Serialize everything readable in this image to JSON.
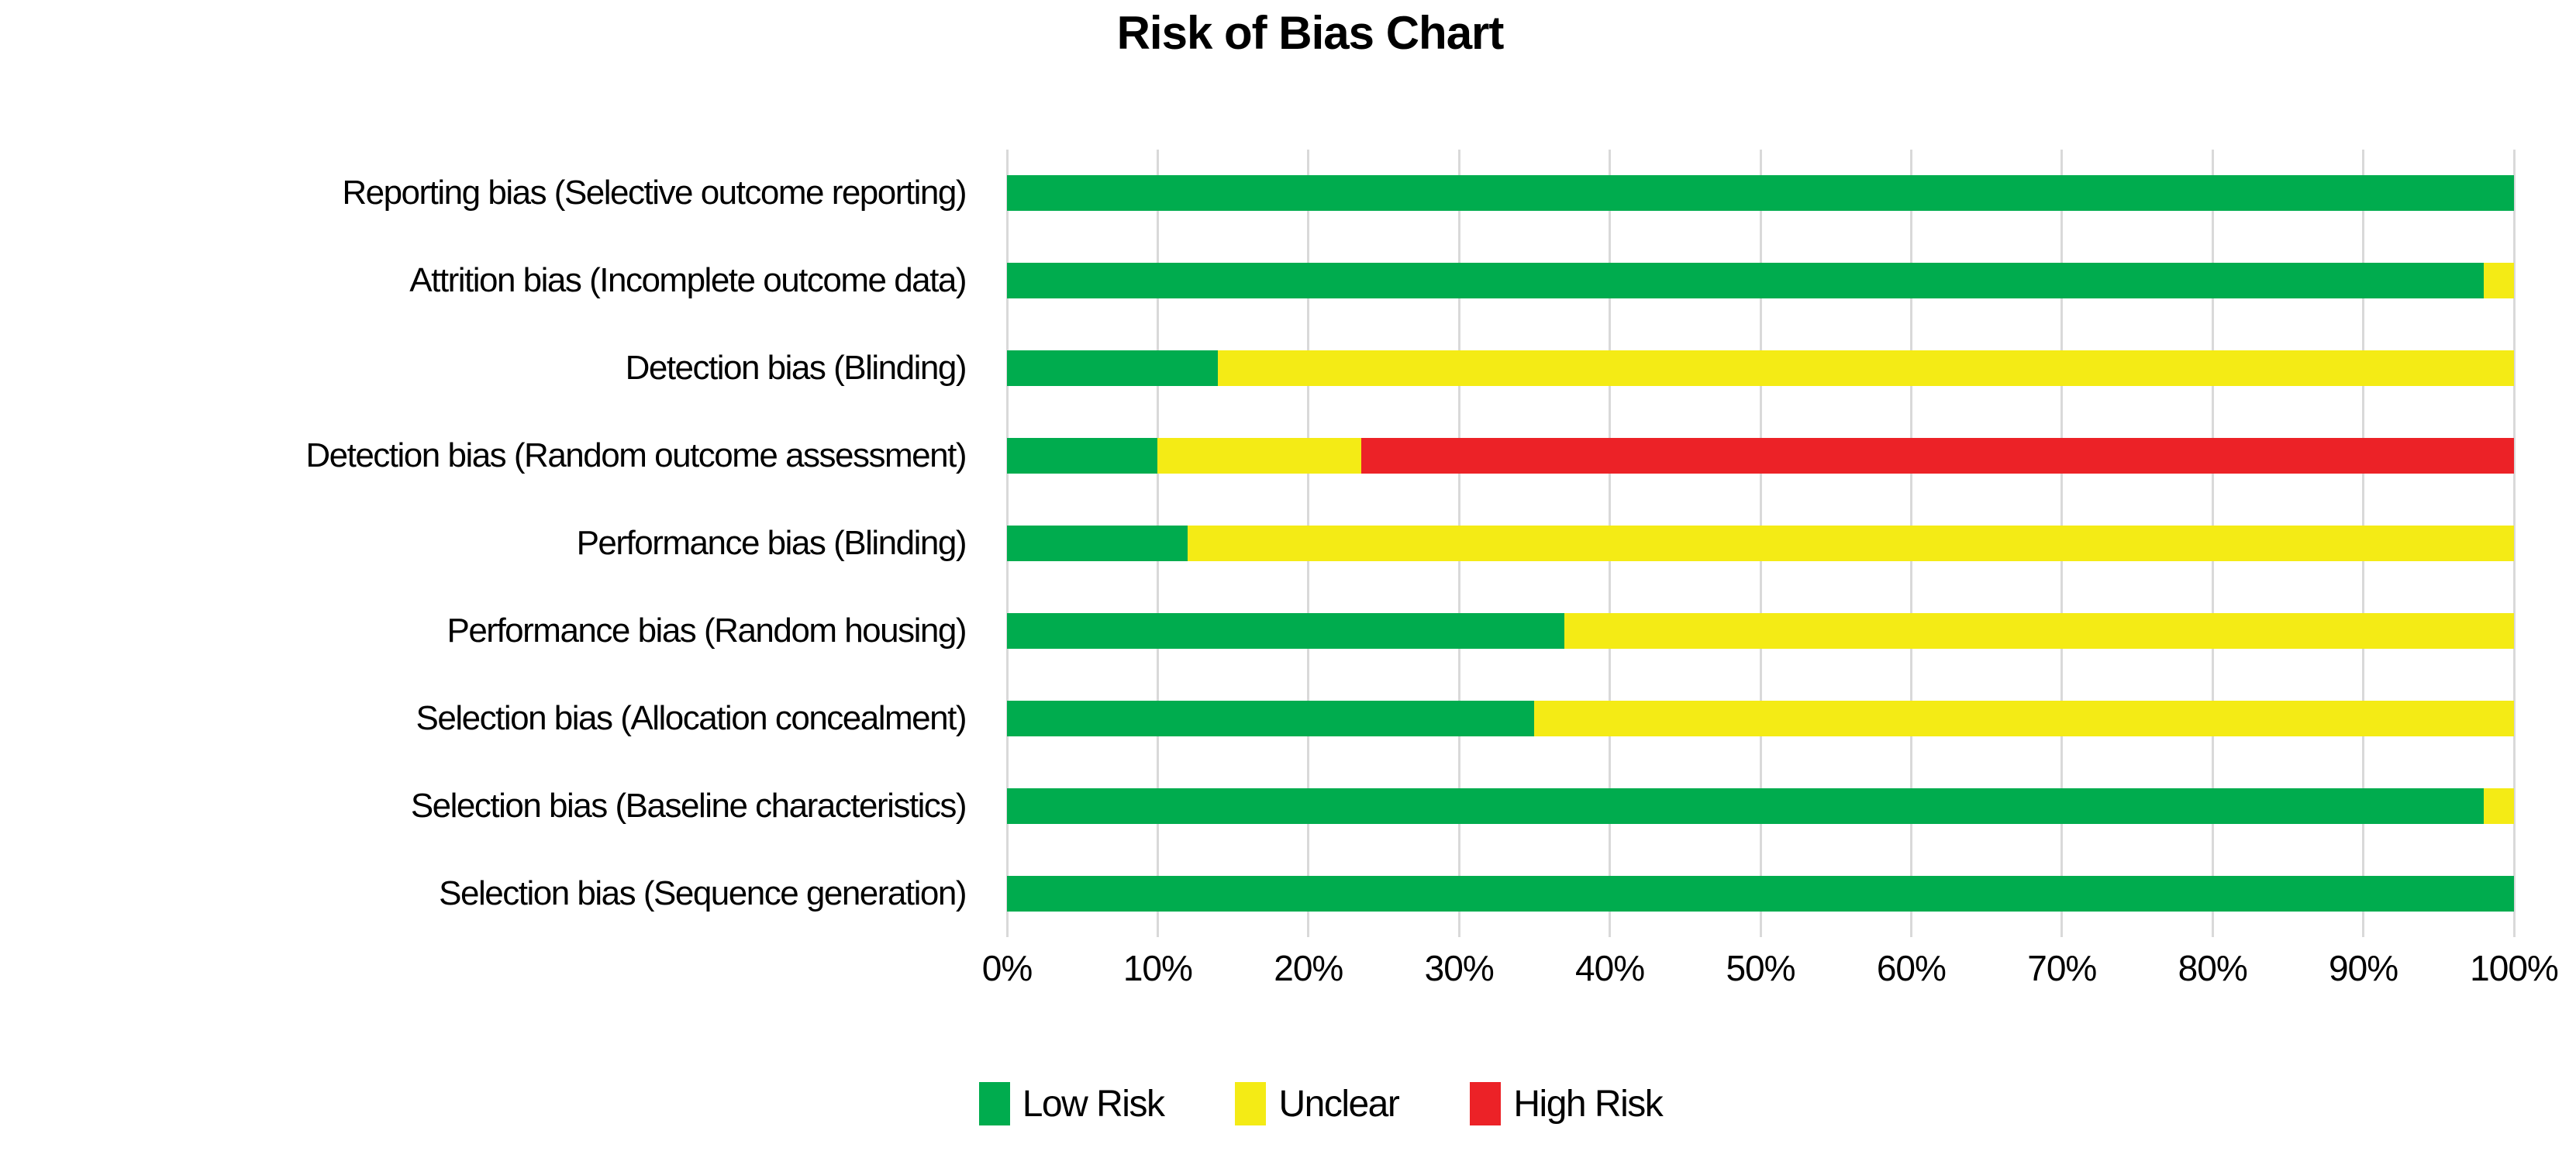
{
  "title": "Risk of Bias Chart",
  "colors": {
    "low_risk": "#00AC4E",
    "unclear": "#F4EB15",
    "high_risk": "#EC2227",
    "gridline": "#D9D9D9",
    "text": "#000000",
    "background": "#FFFFFF"
  },
  "legend": [
    {
      "key": "low_risk",
      "label": "Low Risk",
      "color": "#00AC4E"
    },
    {
      "key": "unclear",
      "label": "Unclear",
      "color": "#F4EB15"
    },
    {
      "key": "high_risk",
      "label": "High Risk",
      "color": "#EC2227"
    }
  ],
  "chart_data": {
    "type": "bar",
    "orientation": "horizontal",
    "stacked": true,
    "title": "Risk of Bias Chart",
    "categories": [
      "Reporting bias (Selective outcome reporting)",
      "Attrition bias (Incomplete outcome data)",
      "Detection bias (Blinding)",
      "Detection bias (Random outcome assessment)",
      "Performance bias (Blinding)",
      "Performance bias (Random housing)",
      "Selection bias (Allocation concealment)",
      "Selection bias (Baseline characteristics)",
      "Selection bias (Sequence generation)"
    ],
    "series": [
      {
        "name": "Low Risk",
        "key": "low_risk",
        "color": "#00AC4E",
        "values": [
          100,
          98,
          14,
          10,
          12,
          37,
          35,
          98,
          100
        ]
      },
      {
        "name": "Unclear",
        "key": "unclear",
        "color": "#F4EB15",
        "values": [
          0,
          2,
          86,
          13.5,
          88,
          63,
          65,
          2,
          0
        ]
      },
      {
        "name": "High Risk",
        "key": "high_risk",
        "color": "#EC2227",
        "values": [
          0,
          0,
          0,
          76.5,
          0,
          0,
          0,
          0,
          0
        ]
      }
    ],
    "xlabel": "",
    "ylabel": "",
    "xlim": [
      0,
      100
    ],
    "x_tick_interval": 10,
    "x_tick_labels": [
      "0%",
      "10%",
      "20%",
      "30%",
      "40%",
      "50%",
      "60%",
      "70%",
      "80%",
      "90%",
      "100%"
    ],
    "grid": "vertical",
    "legend_position": "bottom"
  }
}
